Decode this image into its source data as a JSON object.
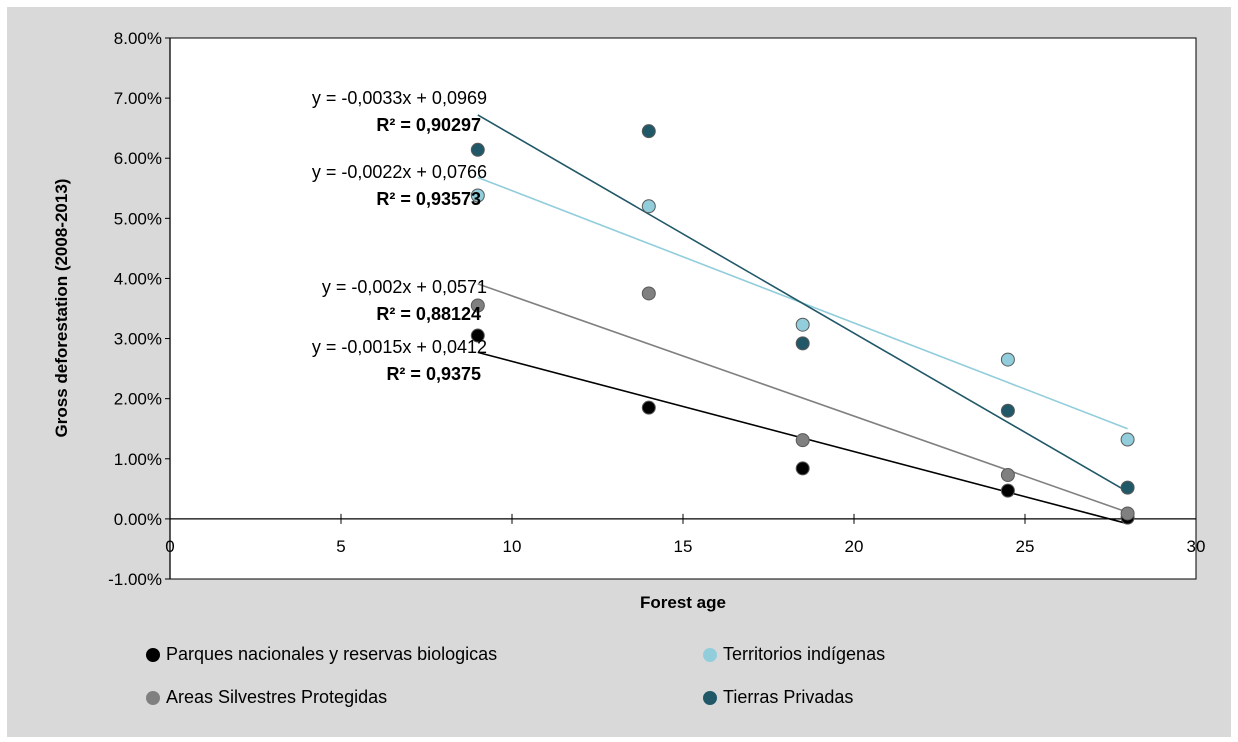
{
  "chart_data": {
    "type": "scatter",
    "xlabel": "Forest age",
    "ylabel": "Gross deforestation (2008-2013)",
    "xlim": [
      0,
      30
    ],
    "ylim": [
      -0.01,
      0.08
    ],
    "x_ticks": [
      0,
      5,
      10,
      15,
      20,
      25,
      30
    ],
    "x_tick_labels": [
      "0",
      "5",
      "10",
      "15",
      "20",
      "25",
      "30"
    ],
    "y_ticks": [
      -0.01,
      0.0,
      0.01,
      0.02,
      0.03,
      0.04,
      0.05,
      0.06,
      0.07,
      0.08
    ],
    "y_tick_labels": [
      "-1.00%",
      "0.00%",
      "1.00%",
      "2.00%",
      "3.00%",
      "4.00%",
      "5.00%",
      "6.00%",
      "7.00%",
      "8.00%"
    ],
    "grid": false,
    "legend_position": "bottom",
    "series": [
      {
        "name": "Parques nacionales y reservas biologicas",
        "color": "#000000",
        "x": [
          9,
          14,
          18.5,
          24.5,
          28
        ],
        "y": [
          0.0305,
          0.0185,
          0.0084,
          0.0047,
          0.0002
        ],
        "trendline": {
          "slope": -0.0015,
          "intercept": 0.0412,
          "x_range": [
            9,
            28
          ],
          "equation": "y = -0,0015x + 0,0412",
          "r2": "R² = 0,9375"
        }
      },
      {
        "name": "Territorios indígenas",
        "color": "#92cddc",
        "x": [
          9,
          14,
          18.5,
          24.5,
          28
        ],
        "y": [
          0.0538,
          0.052,
          0.0323,
          0.0265,
          0.0132
        ],
        "trendline": {
          "slope": -0.0022,
          "intercept": 0.0766,
          "x_range": [
            9,
            28
          ],
          "equation": "y = -0,0022x + 0,0766",
          "r2": "R² = 0,93573"
        }
      },
      {
        "name": "Areas Silvestres Protegidas",
        "color": "#808080",
        "x": [
          9,
          14,
          18.5,
          24.5,
          28
        ],
        "y": [
          0.0355,
          0.0375,
          0.0131,
          0.0073,
          0.0009
        ],
        "trendline": {
          "slope": -0.002,
          "intercept": 0.0571,
          "x_range": [
            9,
            28
          ],
          "equation": "y = -0,002x + 0,0571",
          "r2": "R² = 0,88124"
        }
      },
      {
        "name": "Tierras Privadas",
        "color": "#215868",
        "x": [
          9,
          14,
          18.5,
          24.5,
          28
        ],
        "y": [
          0.0614,
          0.0645,
          0.0292,
          0.018,
          0.0052
        ],
        "trendline": {
          "slope": -0.0033,
          "intercept": 0.0969,
          "x_range": [
            9,
            28
          ],
          "equation": "y = -0,0033x + 0,0969",
          "r2": "R² = 0,90297"
        }
      }
    ]
  }
}
